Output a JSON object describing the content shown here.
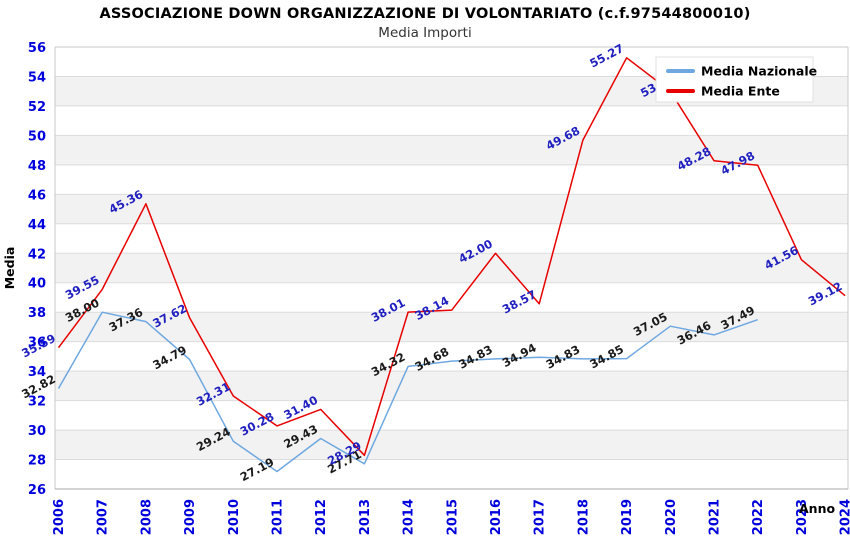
{
  "header": {
    "title": "ASSOCIAZIONE DOWN ORGANIZZAZIONE DI VOLONTARIATO (c.f.97544800010)",
    "subtitle": "Media Importi"
  },
  "chart_data": {
    "type": "line",
    "title": "ASSOCIAZIONE DOWN ORGANIZZAZIONE DI VOLONTARIATO (c.f.97544800010)",
    "subtitle": "Media Importi",
    "xlabel": "Anno",
    "ylabel": "Media",
    "ylim": [
      26,
      56
    ],
    "ytick_step": 2,
    "grid": "striped-bands",
    "legend_position": "top-right",
    "categories": [
      "2006",
      "2007",
      "2008",
      "2009",
      "2010",
      "2011",
      "2012",
      "2013",
      "2014",
      "2015",
      "2016",
      "2017",
      "2018",
      "2019",
      "2020",
      "2021",
      "2022",
      "2023",
      "2024"
    ],
    "y_ticks": [
      "26",
      "28",
      "30",
      "32",
      "34",
      "36",
      "38",
      "40",
      "42",
      "44",
      "46",
      "48",
      "50",
      "52",
      "54",
      "56"
    ],
    "series": [
      {
        "name": "Media Nazionale",
        "color": "#6fa8e0",
        "label_color": "#1a1a1a",
        "values": [
          32.82,
          38.0,
          37.36,
          34.79,
          29.24,
          27.19,
          29.43,
          27.71,
          34.32,
          34.68,
          34.83,
          34.94,
          34.83,
          34.85,
          37.05,
          36.46,
          37.49,
          null,
          null
        ],
        "labels": [
          "32.82",
          "38.00",
          "37.36",
          "34.79",
          "29.24",
          "27.19",
          "29.43",
          "27.71",
          "34.32",
          "34.68",
          "34.83",
          "34.94",
          "34.83",
          "34.85",
          "37.05",
          "36.46",
          "37.49"
        ]
      },
      {
        "name": "Media Ente",
        "color": "#e80000",
        "label_color": "#2020c0",
        "values": [
          35.59,
          39.55,
          45.36,
          37.62,
          32.31,
          30.28,
          31.4,
          28.29,
          38.01,
          38.14,
          42.0,
          38.57,
          49.68,
          55.27,
          53.0,
          48.28,
          47.98,
          41.56,
          39.12
        ],
        "labels": [
          "35.59",
          "39.55",
          "45.36",
          "37.62",
          "32.31",
          "30.28",
          "31.40",
          "28.29",
          "38.01",
          "38.14",
          "42.00",
          "38.57",
          "49.68",
          "55.27",
          "53.0",
          "48.28",
          "47.98",
          "41.56",
          "39.12"
        ]
      }
    ]
  },
  "legend": {
    "items": [
      {
        "label": "Media Nazionale",
        "color": "#6fa8e0"
      },
      {
        "label": "Media Ente",
        "color": "#e80000"
      }
    ]
  },
  "colors": {
    "tick_blue": "#0000dd",
    "stripe_gray": "#f2f2f2",
    "gridline": "#dcdcdc",
    "plot_border": "#c8c8c8",
    "axis_line": "#aaaaaa",
    "axis_title": "#000000"
  }
}
